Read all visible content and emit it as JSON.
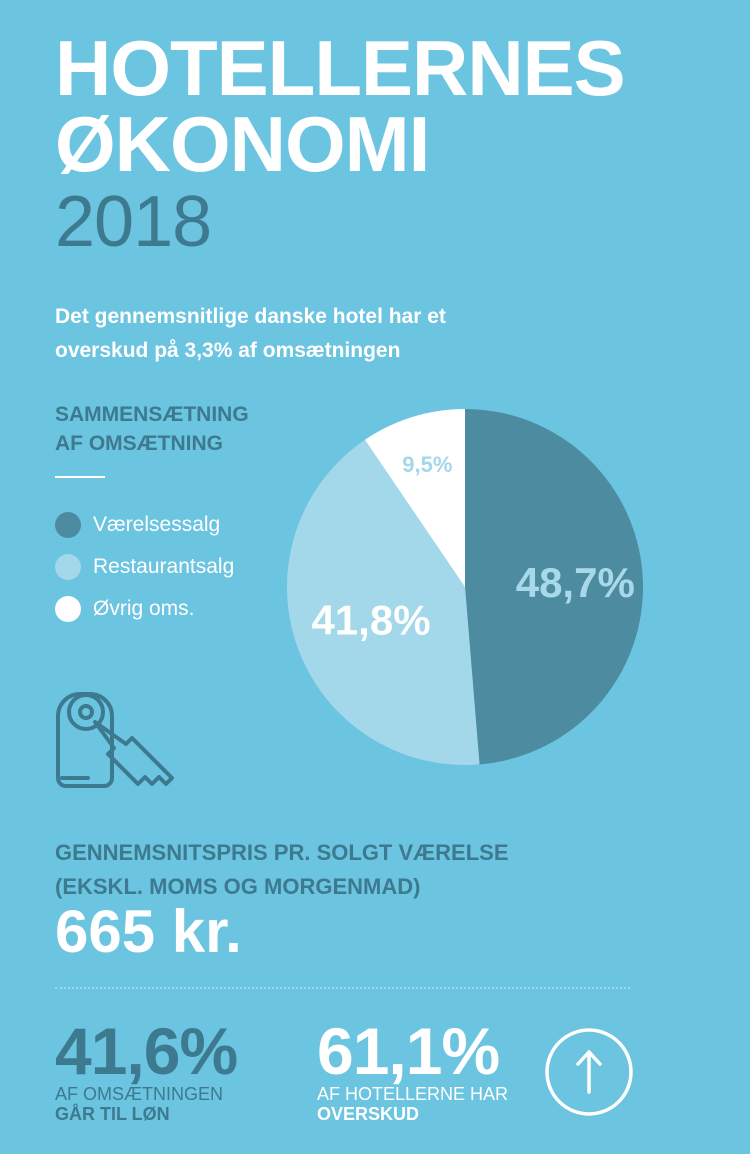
{
  "header": {
    "title_line1": "HOTELLERNES",
    "title_line2": "ØKONOMI",
    "year": "2018",
    "subtitle_line1": "Det gennemsnitlige danske hotel har et",
    "subtitle_line2": "overskud på 3,3% af omsætningen"
  },
  "composition": {
    "heading_line1": "SAMMENSÆTNING",
    "heading_line2": "AF OMSÆTNING"
  },
  "chart_data": {
    "type": "pie",
    "title": "SAMMENSÆTNING AF OMSÆTNING",
    "slices": [
      {
        "label": "Værelsessalg",
        "value": 48.7,
        "display": "48,7%",
        "color": "#4d8ca0",
        "text_color": "#a8d9ea"
      },
      {
        "label": "Restaurantsalg",
        "value": 41.8,
        "display": "41,8%",
        "color": "#a3d7ea",
        "text_color": "#ffffff"
      },
      {
        "label": "Øvrig oms.",
        "value": 9.5,
        "display": "9,5%",
        "color": "#ffffff",
        "text_color": "#a3d7ea"
      }
    ],
    "legend_position": "left"
  },
  "price": {
    "heading_line1": "GENNEMSNITSPRIS PR. SOLGT VÆRELSE",
    "heading_line2": "(EKSKL. MOMS OG MORGENMAD)",
    "value": "665 kr."
  },
  "stats": [
    {
      "value": "41,6%",
      "line1": "AF OMSÆTNINGEN",
      "line2": "GÅR TIL LØN",
      "color": "#3d7a8f"
    },
    {
      "value": "61,1%",
      "line1": "AF HOTELLERNE HAR",
      "line2": "OVERSKUD",
      "color": "#ffffff"
    }
  ],
  "icons": {
    "key": "key-icon",
    "arrow": "arrow-up-circle-icon"
  },
  "colors": {
    "background": "#6bc4e0",
    "dark": "#3d7a8f",
    "white": "#ffffff"
  }
}
